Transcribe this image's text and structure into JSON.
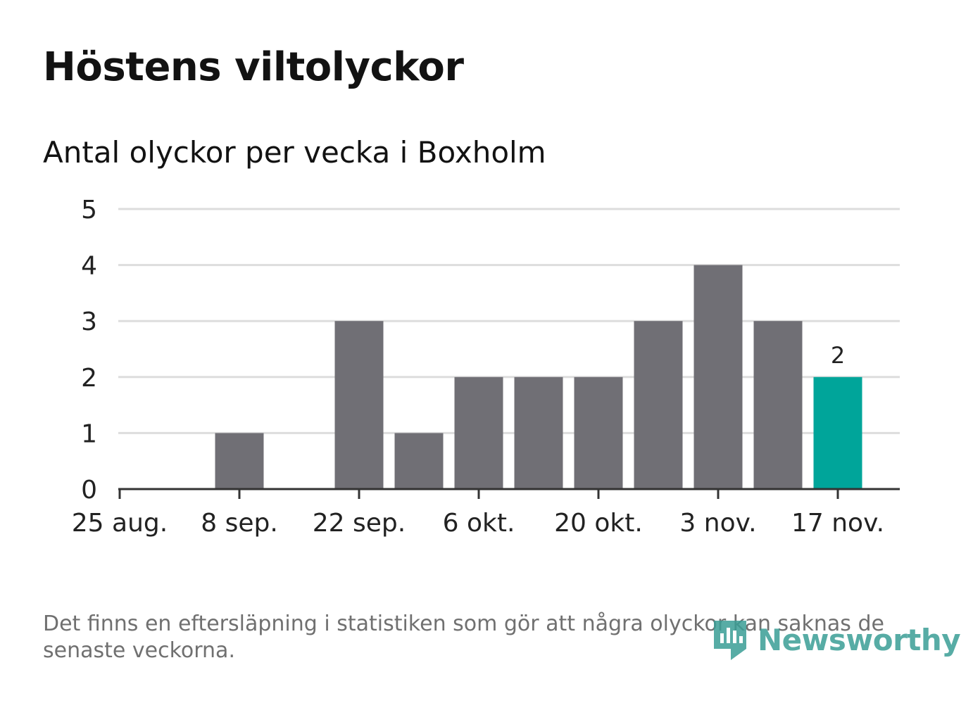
{
  "title": "Höstens viltolyckor",
  "subtitle": "Antal olyckor per vecka i Boxholm",
  "note": "Det finns en eftersläpning i statistiken som gör att några olyckor kan saknas de senaste veckorna.",
  "brand": {
    "name": "Newsworthy",
    "icon": "newsworthy-logo-icon"
  },
  "colors": {
    "bar": "#706f75",
    "highlight": "#00a59a",
    "grid": "#dddddd",
    "axis": "#333333",
    "text": "#121212",
    "note": "#707070",
    "brand": "#3a9e96"
  },
  "chart_data": {
    "type": "bar",
    "title": "Höstens viltolyckor",
    "subtitle": "Antal olyckor per vecka i Boxholm",
    "xlabel": "",
    "ylabel": "",
    "categories": [
      "25 aug.",
      "1 sep.",
      "8 sep.",
      "15 sep.",
      "22 sep.",
      "29 sep.",
      "6 okt.",
      "13 okt.",
      "20 okt.",
      "27 okt.",
      "3 nov.",
      "10 nov.",
      "17 nov."
    ],
    "x_tick_labels": [
      "25 aug.",
      "8 sep.",
      "22 sep.",
      "6 okt.",
      "20 okt.",
      "3 nov.",
      "17 nov."
    ],
    "y_ticks": [
      0,
      1,
      2,
      3,
      4,
      5
    ],
    "values": [
      0,
      0,
      1,
      0,
      3,
      1,
      2,
      2,
      2,
      3,
      4,
      3,
      2
    ],
    "highlight_index": 12,
    "data_labels": [
      {
        "category": "17 nov.",
        "value": 2,
        "label": "2"
      }
    ],
    "ylim": [
      0,
      5
    ],
    "grid": true,
    "legend": "none"
  }
}
